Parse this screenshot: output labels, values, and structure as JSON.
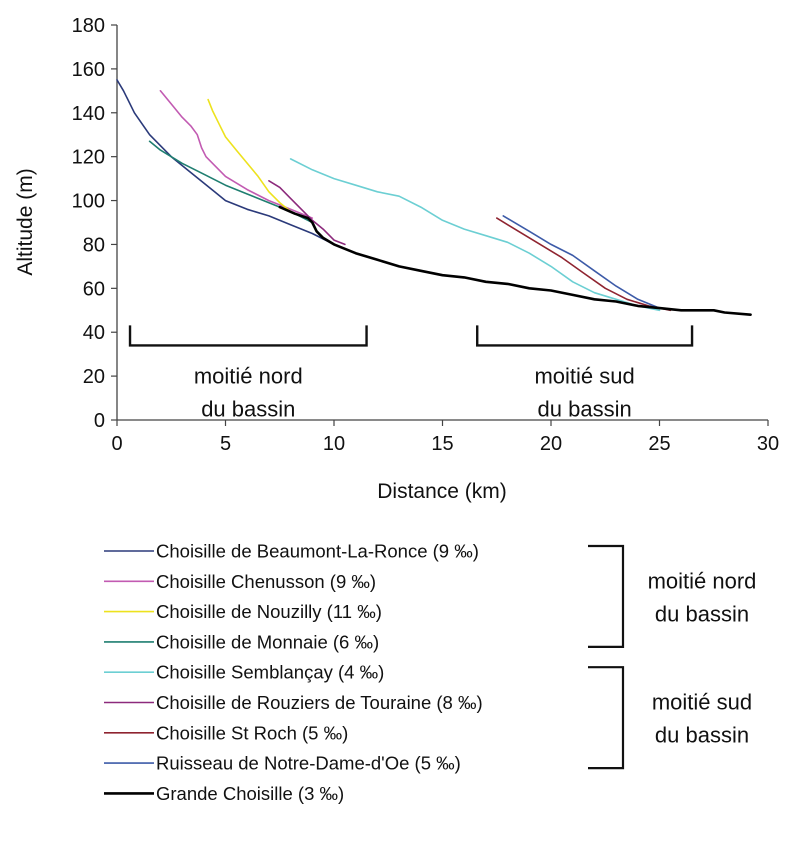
{
  "chart_data": {
    "type": "line",
    "xlabel": "Distance (km)",
    "ylabel": "Altitude (m)",
    "xlim": [
      0,
      30
    ],
    "ylim": [
      0,
      180
    ],
    "xticks": [
      0,
      5,
      10,
      15,
      20,
      25,
      30
    ],
    "yticks": [
      0,
      20,
      40,
      60,
      80,
      100,
      120,
      140,
      160,
      180
    ],
    "grid": false,
    "legend_position": "bottom",
    "series": [
      {
        "name": "Choisille de Beaumont-La-Ronce (9 ‰)",
        "color": "#2b3a7a",
        "x": [
          0,
          0.3,
          0.8,
          1.5,
          2.5,
          3.5,
          4.5,
          5.0,
          6.0,
          7.0,
          8.0,
          9.0,
          10.0
        ],
        "y": [
          155,
          150,
          140,
          130,
          120,
          112,
          104,
          100,
          96,
          93,
          89,
          85,
          80
        ]
      },
      {
        "name": "Choisille Chenusson (9 ‰)",
        "color": "#c25bb2",
        "x": [
          2.0,
          2.5,
          3.0,
          3.4,
          3.7,
          3.9,
          4.1,
          4.5,
          5.0,
          6.0,
          7.0,
          8.0,
          9.0
        ],
        "y": [
          150,
          144,
          138,
          134,
          130,
          124,
          120,
          116,
          111,
          105,
          100,
          96,
          92
        ]
      },
      {
        "name": "Choisille de Nouzilly (11 ‰)",
        "color": "#ede21e",
        "x": [
          4.2,
          4.4,
          4.7,
          5.0,
          5.5,
          6.0,
          6.5,
          7.0,
          7.5,
          8.0
        ],
        "y": [
          146,
          141,
          135,
          129,
          123,
          117,
          111,
          104,
          99,
          95
        ]
      },
      {
        "name": "Choisille de Monnaie (6 ‰)",
        "color": "#1f7e70",
        "x": [
          1.5,
          2.0,
          3.0,
          4.0,
          5.0,
          6.0,
          7.0,
          8.0,
          9.0
        ],
        "y": [
          127,
          123,
          117,
          112,
          107,
          103,
          99,
          95,
          90
        ]
      },
      {
        "name": "Choisille Semblançay (4 ‰)",
        "color": "#6ccfd3",
        "x": [
          8.0,
          9.0,
          10.0,
          11.0,
          12.0,
          13.0,
          14.0,
          15.0,
          16.0,
          17.0,
          18.0,
          19.0,
          20.0,
          21.0,
          22.0,
          23.0,
          24.0,
          25.0
        ],
        "y": [
          119,
          114,
          110,
          107,
          104,
          102,
          97,
          91,
          87,
          84,
          81,
          76,
          70,
          63,
          58,
          55,
          52,
          50
        ]
      },
      {
        "name": "Choisille de Rouziers de Touraine (8 ‰)",
        "color": "#8c2a7c",
        "x": [
          7.0,
          7.5,
          8.0,
          8.5,
          9.0,
          9.5,
          10.0,
          10.5
        ],
        "y": [
          109,
          106,
          101,
          96,
          91,
          87,
          82,
          80
        ]
      },
      {
        "name": "Choisille St Roch (5 ‰)",
        "color": "#8f2430",
        "x": [
          17.5,
          18.5,
          19.5,
          20.5,
          21.5,
          22.5,
          23.5,
          24.5,
          25.5
        ],
        "y": [
          92,
          86,
          80,
          74,
          67,
          60,
          55,
          52,
          50
        ]
      },
      {
        "name": "Ruisseau de Notre-Dame-d'Oe (5 ‰)",
        "color": "#3d5ba8",
        "x": [
          17.8,
          19.0,
          20.0,
          21.0,
          22.0,
          23.0,
          24.0,
          25.0
        ],
        "y": [
          93,
          86,
          80,
          75,
          68,
          61,
          55,
          51
        ]
      },
      {
        "name": "Grande Choisille (3 ‰)",
        "color": "#000000",
        "x": [
          7.5,
          8.2,
          8.8,
          9.0,
          9.2,
          9.5,
          10.0,
          11.0,
          12.0,
          13.0,
          14.0,
          15.0,
          16.0,
          17.0,
          18.0,
          19.0,
          20.0,
          21.0,
          22.0,
          23.0,
          24.0,
          25.0,
          26.0,
          27.0,
          27.5,
          28.0,
          29.2
        ],
        "y": [
          97,
          94,
          92,
          90,
          86,
          83,
          80,
          76,
          73,
          70,
          68,
          66,
          65,
          63,
          62,
          60,
          59,
          57,
          55,
          54,
          52,
          51,
          50,
          50,
          50,
          49,
          48
        ]
      }
    ],
    "annotations": [
      {
        "text_lines": [
          "moitié nord",
          "du bassin"
        ],
        "x_range": [
          0.6,
          11.5
        ],
        "y": 34
      },
      {
        "text_lines": [
          "moitié sud",
          "du bassin"
        ],
        "x_range": [
          16.6,
          26.5
        ],
        "y": 34
      }
    ],
    "legend_groups": [
      {
        "lines": [
          "moitié nord",
          "du bassin"
        ],
        "series_range": [
          0,
          3
        ]
      },
      {
        "lines": [
          "moitié sud",
          "du bassin"
        ],
        "series_range": [
          4,
          7
        ]
      }
    ]
  }
}
